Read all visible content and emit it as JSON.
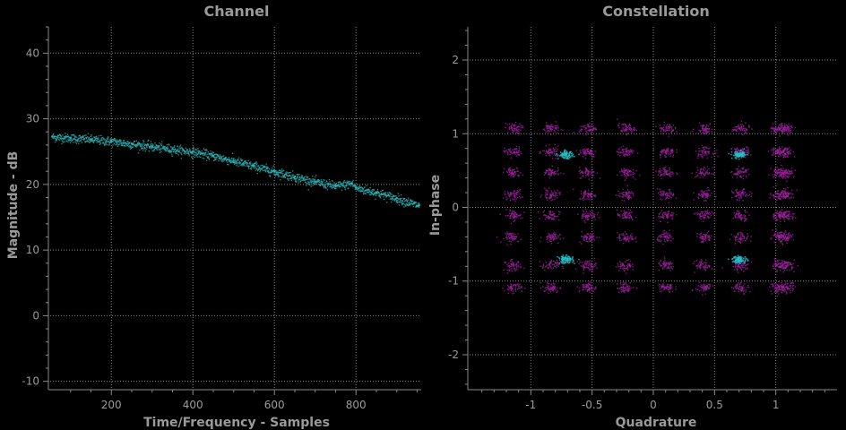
{
  "colors": {
    "background": "#000000",
    "text": "#9a9a9a",
    "grid": "#8a8a8a",
    "channel_trace": "#2ab5b5",
    "constellation_received": "#a020a0",
    "constellation_pilots": "#28c0c8"
  },
  "chart_data": [
    {
      "type": "scatter",
      "title": "Channel",
      "xlabel": "Time/Frequency - Samples",
      "ylabel": "Magnitude - dB",
      "xlim": [
        50,
        960
      ],
      "ylim": [
        -11,
        44
      ],
      "xticks": [
        200,
        400,
        600,
        800
      ],
      "yticks": [
        -10,
        0,
        10,
        20,
        30,
        40
      ],
      "grid": true,
      "series": [
        {
          "x": [
            55,
            100,
            150,
            200,
            250,
            300,
            350,
            400,
            450,
            500,
            550,
            600,
            650,
            700,
            750,
            790,
            800,
            850,
            900,
            955
          ],
          "y": [
            27.3,
            27.1,
            26.9,
            26.6,
            26.2,
            25.8,
            25.4,
            25.0,
            24.4,
            23.6,
            22.8,
            22.0,
            21.2,
            20.4,
            19.8,
            20.2,
            19.5,
            18.8,
            17.9,
            16.8
          ]
        }
      ]
    },
    {
      "type": "scatter",
      "title": "Constellation",
      "xlabel": "Quadrature",
      "ylabel": "In-phase",
      "xlim": [
        -1.5,
        1.5
      ],
      "ylim": [
        -2.45,
        2.45
      ],
      "xticks": [
        -1,
        -0.5,
        0,
        0.5,
        1
      ],
      "xtick_labels": [
        "-1",
        "-0.5",
        "0",
        "0.5",
        "1"
      ],
      "yticks": [
        -2,
        -1,
        0,
        1,
        2
      ],
      "ytick_labels": [
        "-2",
        "-1",
        "0",
        "1",
        "2"
      ],
      "grid": true,
      "series": [
        {
          "grid_x": [
            -1.15,
            -0.84,
            -0.54,
            -0.23,
            0.1,
            0.41,
            0.71,
            1.02,
            1.08
          ],
          "grid_y": [
            1.08,
            0.76,
            0.48,
            0.18,
            -0.1,
            -0.4,
            -0.78,
            -1.08
          ],
          "description_points": "64-QAM style lattice of received points"
        },
        {
          "x": [
            -0.72,
            0.7,
            -0.72,
            0.7
          ],
          "y": [
            0.72,
            0.72,
            -0.7,
            -0.7
          ]
        }
      ]
    }
  ]
}
